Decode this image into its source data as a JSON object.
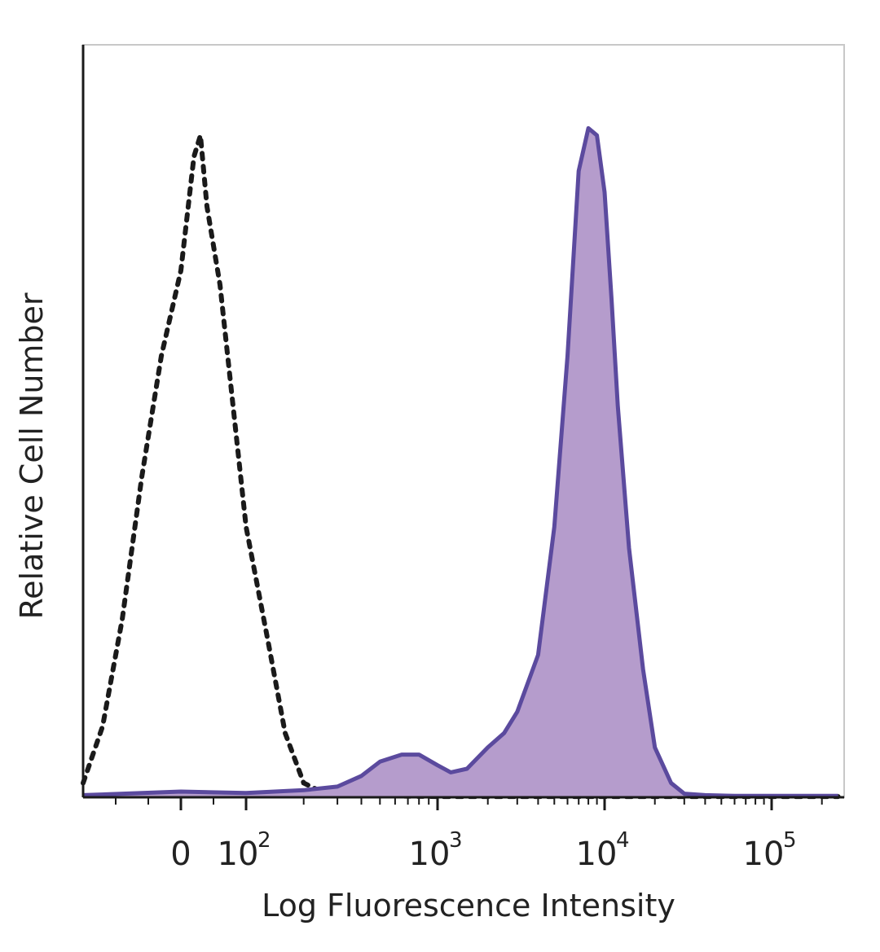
{
  "chart_data": {
    "type": "area",
    "title": "",
    "xlabel": "Log Fluorescence Intensity",
    "ylabel": "Relative Cell Number",
    "x_scale": "biexponential",
    "x_major_ticks": [
      {
        "value": 0,
        "base": "0",
        "exp": ""
      },
      {
        "value": 100,
        "base": "10",
        "exp": "2"
      },
      {
        "value": 1000,
        "base": "10",
        "exp": "3"
      },
      {
        "value": 10000,
        "base": "10",
        "exp": "4"
      },
      {
        "value": 100000,
        "base": "10",
        "exp": "5"
      }
    ],
    "xlim": [
      -150,
      250000
    ],
    "ylim": [
      0,
      100
    ],
    "grid": false,
    "legend": "none",
    "series": [
      {
        "style": "dotted",
        "color": "#1a1a1a",
        "fill": "none",
        "x": [
          -150,
          -120,
          -90,
          -60,
          -30,
          0,
          10,
          20,
          30,
          40,
          60,
          80,
          100,
          130,
          160,
          200,
          260,
          350,
          500,
          1000,
          10000,
          250000
        ],
        "y": [
          2,
          10,
          25,
          45,
          62,
          74,
          82,
          90,
          93,
          83,
          72,
          55,
          38,
          22,
          9,
          2,
          0.5,
          0.3,
          0.2,
          0.1,
          0.1,
          0.1
        ]
      },
      {
        "style": "solid",
        "color": "#5b4a9e",
        "fill": "#b59ccc",
        "x": [
          -150,
          0,
          100,
          200,
          300,
          400,
          500,
          650,
          800,
          1000,
          1200,
          1500,
          2000,
          2500,
          3000,
          4000,
          5000,
          6000,
          7000,
          8000,
          9000,
          10000,
          11000,
          12000,
          14000,
          17000,
          20000,
          25000,
          30000,
          40000,
          60000,
          100000,
          250000
        ],
        "y": [
          0.3,
          0.8,
          0.6,
          1,
          1.5,
          3,
          5,
          6,
          6,
          4.5,
          3.5,
          4,
          7,
          9,
          12,
          20,
          38,
          62,
          88,
          94,
          93,
          85,
          70,
          55,
          35,
          18,
          7,
          2,
          0.5,
          0.3,
          0.2,
          0.2,
          0.2
        ]
      }
    ]
  }
}
